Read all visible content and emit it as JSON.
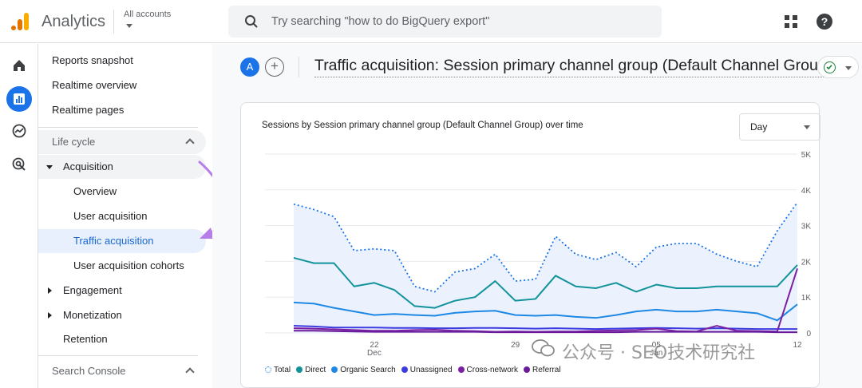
{
  "app": {
    "name": "Analytics",
    "account_label": "All accounts"
  },
  "search": {
    "placeholder": "Try searching \"how to do BigQuery export\""
  },
  "icons": {
    "apps": "apps-grid-icon",
    "help": "help-icon",
    "search": "search-icon"
  },
  "rail": [
    {
      "name": "home-icon",
      "active": false
    },
    {
      "name": "reports-icon",
      "active": true
    },
    {
      "name": "explore-icon",
      "active": false
    },
    {
      "name": "advertising-icon",
      "active": false
    }
  ],
  "nav": {
    "top_items": [
      "Reports snapshot",
      "Realtime overview",
      "Realtime pages"
    ],
    "lifecycle_label": "Life cycle",
    "acquisition_label": "Acquisition",
    "acquisition_children": [
      "Overview",
      "User acquisition",
      "Traffic acquisition",
      "User acquisition cohorts"
    ],
    "selected": "Traffic acquisition",
    "engagement_label": "Engagement",
    "monetization_label": "Monetization",
    "retention_label": "Retention",
    "search_console_label": "Search Console"
  },
  "page": {
    "comparison_avatar": "A",
    "add_comparison": "+",
    "title": "Traffic acquisition: Session primary channel group (Default Channel Group)"
  },
  "card": {
    "title": "Sessions by Session primary channel group (Default Channel Group) over time",
    "granularity": "Day"
  },
  "chart_data": {
    "type": "line",
    "title": "Sessions by Session primary channel group (Default Channel Group) over time",
    "x_tick_labels": [
      {
        "text": "22",
        "sub": "Dec"
      },
      {
        "text": "29",
        "sub": ""
      },
      {
        "text": "05",
        "sub": "Jan"
      },
      {
        "text": "12",
        "sub": ""
      }
    ],
    "x_tick_index": [
      4,
      11,
      18,
      25
    ],
    "y_tick_labels": [
      "0",
      "1K",
      "2K",
      "3K",
      "4K",
      "5K"
    ],
    "ylim": [
      0,
      5000
    ],
    "grid": true,
    "legend_position": "bottom",
    "series": [
      {
        "name": "Total",
        "color": "#1a73e8",
        "style": "dotted-area",
        "values": [
          3600,
          3450,
          3250,
          2300,
          2350,
          2300,
          1300,
          1150,
          1700,
          1800,
          2200,
          1450,
          1500,
          2700,
          2200,
          2050,
          2250,
          1850,
          2400,
          2500,
          2500,
          2200,
          2000,
          1850,
          2850,
          3650
        ]
      },
      {
        "name": "Direct",
        "color": "#12939a",
        "values": [
          2100,
          1950,
          1950,
          1300,
          1400,
          1200,
          750,
          700,
          900,
          1000,
          1450,
          900,
          950,
          1600,
          1300,
          1250,
          1400,
          1150,
          1350,
          1250,
          1250,
          1300,
          1300,
          1300,
          1300,
          1900
        ]
      },
      {
        "name": "Organic Search",
        "color": "#1e88e5",
        "values": [
          850,
          820,
          700,
          600,
          500,
          530,
          500,
          480,
          560,
          600,
          620,
          500,
          480,
          500,
          450,
          420,
          500,
          600,
          650,
          600,
          600,
          650,
          600,
          550,
          350,
          800
        ]
      },
      {
        "name": "Unassigned",
        "color": "#3c3ce0",
        "values": [
          200,
          180,
          150,
          150,
          150,
          140,
          140,
          130,
          130,
          140,
          140,
          130,
          120,
          130,
          120,
          110,
          120,
          130,
          140,
          130,
          120,
          130,
          120,
          110,
          110,
          110
        ]
      },
      {
        "name": "Cross-network",
        "color": "#7b1fa2",
        "values": [
          130,
          120,
          100,
          80,
          60,
          60,
          80,
          90,
          60,
          50,
          30,
          40,
          30,
          40,
          40,
          60,
          70,
          80,
          120,
          50,
          40,
          200,
          60,
          50,
          40,
          1800
        ]
      },
      {
        "name": "Referral",
        "color": "#6a1b9a",
        "values": [
          60,
          60,
          50,
          40,
          30,
          30,
          30,
          30,
          30,
          30,
          20,
          20,
          20,
          20,
          20,
          20,
          20,
          30,
          30,
          30,
          30,
          30,
          30,
          30,
          20,
          20
        ]
      }
    ]
  },
  "watermark": {
    "text": "公众号 · SEO技术研究社"
  }
}
